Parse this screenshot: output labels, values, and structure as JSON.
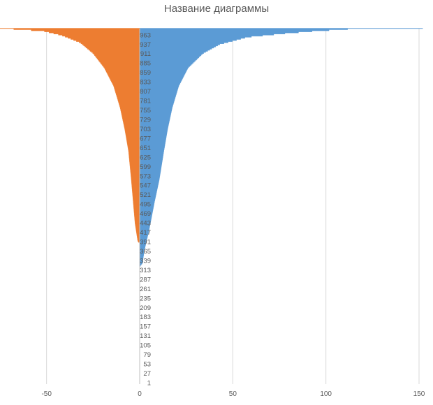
{
  "chart_data": {
    "type": "bar",
    "orientation": "horizontal",
    "title": "Название диаграммы",
    "xlabel": "",
    "ylabel": "",
    "xlim": [
      -60,
      150
    ],
    "x_ticks": [
      -50,
      0,
      50,
      100,
      150
    ],
    "category_range": [
      1,
      980
    ],
    "y_tick_labels": [
      1,
      27,
      53,
      79,
      105,
      131,
      157,
      183,
      209,
      235,
      261,
      287,
      313,
      339,
      365,
      391,
      417,
      443,
      469,
      495,
      521,
      547,
      573,
      599,
      625,
      651,
      677,
      703,
      729,
      755,
      781,
      807,
      833,
      859,
      885,
      911,
      937,
      963
    ],
    "grid": "vertical-major",
    "legend": "none",
    "series": [
      {
        "color": "#5b9bd5",
        "points": [
          {
            "category": 320,
            "value": 0
          },
          {
            "category": 330,
            "value": 1.5
          },
          {
            "category": 365,
            "value": 2.5
          },
          {
            "category": 420,
            "value": 5
          },
          {
            "category": 500,
            "value": 8
          },
          {
            "category": 560,
            "value": 10.5
          },
          {
            "category": 640,
            "value": 13
          },
          {
            "category": 700,
            "value": 15
          },
          {
            "category": 760,
            "value": 17.5
          },
          {
            "category": 820,
            "value": 21
          },
          {
            "category": 870,
            "value": 26
          },
          {
            "category": 910,
            "value": 34
          },
          {
            "category": 935,
            "value": 43
          },
          {
            "category": 955,
            "value": 58
          },
          {
            "category": 965,
            "value": 78
          },
          {
            "category": 972,
            "value": 95
          },
          {
            "category": 978,
            "value": 115
          },
          {
            "category": 980,
            "value": 152
          }
        ]
      },
      {
        "color": "#ed7d31",
        "points": [
          {
            "category": 386,
            "value": 0
          },
          {
            "category": 390,
            "value": -1
          },
          {
            "category": 440,
            "value": -2.5
          },
          {
            "category": 500,
            "value": -3.5
          },
          {
            "category": 560,
            "value": -4.5
          },
          {
            "category": 640,
            "value": -6
          },
          {
            "category": 700,
            "value": -8
          },
          {
            "category": 760,
            "value": -10.5
          },
          {
            "category": 820,
            "value": -14
          },
          {
            "category": 870,
            "value": -19
          },
          {
            "category": 910,
            "value": -25
          },
          {
            "category": 940,
            "value": -32
          },
          {
            "category": 960,
            "value": -42
          },
          {
            "category": 972,
            "value": -52
          },
          {
            "category": 980,
            "value": -77
          }
        ]
      }
    ]
  }
}
